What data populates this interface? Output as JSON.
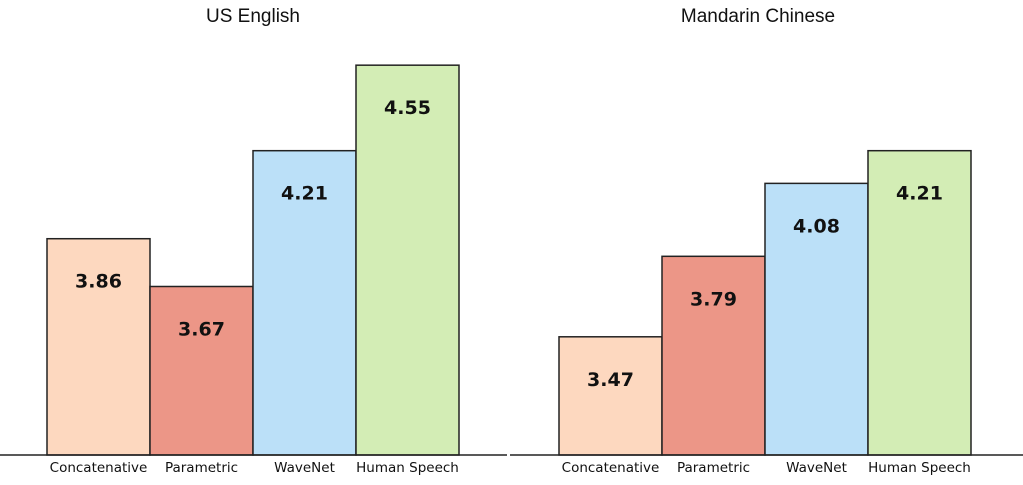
{
  "chart_data": [
    {
      "type": "bar",
      "title": "US English",
      "categories": [
        "Concatenative",
        "Parametric",
        "WaveNet",
        "Human Speech"
      ],
      "values": [
        3.86,
        3.67,
        4.21,
        4.55
      ],
      "colors": [
        "#fdd8bf",
        "#ec9687",
        "#bbe0f8",
        "#d3edb5"
      ],
      "xlabel": "",
      "ylabel": "",
      "ylim": [
        3.0,
        4.6
      ],
      "grid": false,
      "legend": "none"
    },
    {
      "type": "bar",
      "title": "Mandarin Chinese",
      "categories": [
        "Concatenative",
        "Parametric",
        "WaveNet",
        "Human Speech"
      ],
      "values": [
        3.47,
        3.79,
        4.08,
        4.21
      ],
      "colors": [
        "#fdd8bf",
        "#ec9687",
        "#bbe0f8",
        "#d3edb5"
      ],
      "xlabel": "",
      "ylabel": "",
      "ylim": [
        3.0,
        4.6
      ],
      "grid": false,
      "legend": "none"
    }
  ]
}
